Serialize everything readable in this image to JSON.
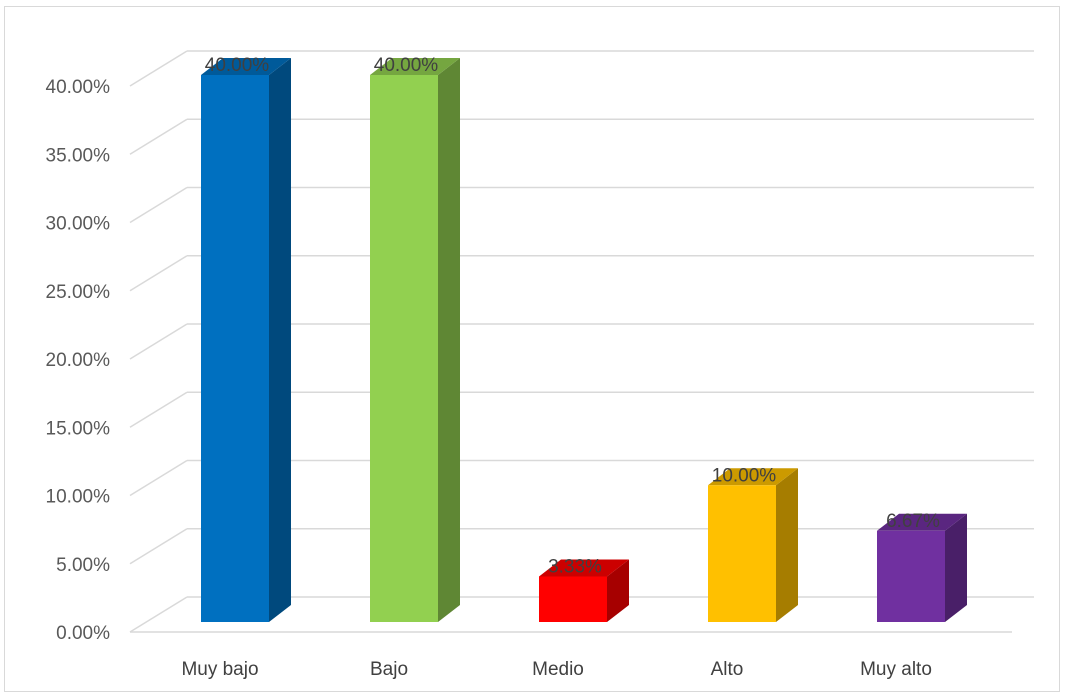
{
  "chart_data": {
    "type": "bar",
    "style": "3d-column",
    "categories": [
      "Muy bajo",
      "Bajo",
      "Medio",
      "Alto",
      "Muy alto"
    ],
    "values": [
      40.0,
      40.0,
      3.33,
      10.0,
      6.67
    ],
    "data_labels": [
      "40.00%",
      "40.00%",
      "3.33%",
      "10.00%",
      "6.67%"
    ],
    "colors": [
      "#0070c0",
      "#92d050",
      "#ff0000",
      "#ffc000",
      "#7030a0"
    ],
    "y_ticks": [
      "0.00%",
      "5.00%",
      "10.00%",
      "15.00%",
      "20.00%",
      "25.00%",
      "30.00%",
      "35.00%",
      "40.00%"
    ],
    "ylim": [
      0,
      40
    ],
    "grid": true,
    "legend": false,
    "title": "",
    "xlabel": "",
    "ylabel": ""
  }
}
